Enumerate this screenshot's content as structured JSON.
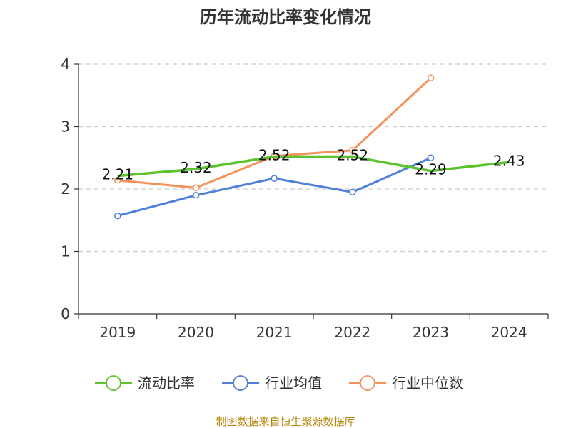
{
  "chart_data": {
    "type": "line",
    "title": "历年流动比率变化情况",
    "categories": [
      "2019",
      "2020",
      "2021",
      "2022",
      "2023",
      "2024"
    ],
    "yticks": [
      "0",
      "1",
      "2",
      "3",
      "4"
    ],
    "ylim": [
      0,
      4
    ],
    "grid": true,
    "legend_position": "bottom",
    "series": [
      {
        "name": "流动比率",
        "color": "#5cc22e",
        "values": [
          2.21,
          2.32,
          2.52,
          2.52,
          2.29,
          2.43
        ],
        "labels": [
          "2.21",
          "2.32",
          "2.52",
          "2.52",
          "2.29",
          "2.43"
        ]
      },
      {
        "name": "行业均值",
        "color": "#4f7fd9",
        "values": [
          1.57,
          1.9,
          2.17,
          1.95,
          2.5,
          null
        ]
      },
      {
        "name": "行业中位数",
        "color": "#f5925c",
        "values": [
          2.14,
          2.02,
          2.53,
          2.62,
          3.78,
          null
        ]
      }
    ],
    "source": "制图数据来自恒生聚源数据库"
  }
}
